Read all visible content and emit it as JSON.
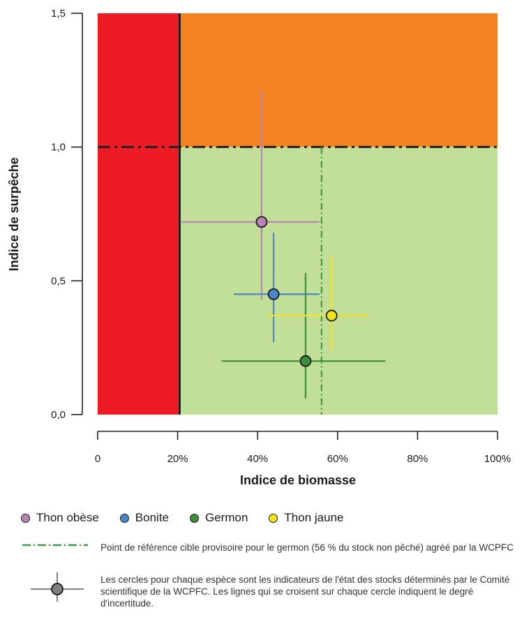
{
  "chart_data": {
    "type": "scatter",
    "xlabel": "Indice de biomasse",
    "ylabel": "Indice de surpêche",
    "xlim": [
      0,
      100
    ],
    "ylim": [
      0,
      1.5
    ],
    "x_ticks": [
      "0",
      "20%",
      "40%",
      "60%",
      "80%",
      "100%"
    ],
    "y_ticks": [
      "0,0",
      "0,5",
      "1,0",
      "1,5"
    ],
    "zones": [
      {
        "x": [
          0,
          20.5
        ],
        "y": [
          0,
          1.5
        ],
        "color": "#ed1c24"
      },
      {
        "x": [
          20.5,
          100
        ],
        "y": [
          1.0,
          1.5
        ],
        "color": "#f58220"
      },
      {
        "x": [
          20.5,
          100
        ],
        "y": [
          0,
          1.0
        ],
        "color": "#c2df9a"
      }
    ],
    "limit_reference_x": 20.5,
    "overfishing_reference_y": 1.0,
    "target_reference_x": 56,
    "series": [
      {
        "name": "Thon obèse",
        "color": "#b784b6",
        "x": 41,
        "y": 0.72,
        "x_range": [
          21,
          55.5
        ],
        "y_range": [
          0.43,
          1.21
        ]
      },
      {
        "name": "Bonite",
        "color": "#4a86c8",
        "x": 44,
        "y": 0.45,
        "x_range": [
          34,
          55.5
        ],
        "y_range": [
          0.27,
          0.68
        ]
      },
      {
        "name": "Germon",
        "color": "#3e8e3e",
        "x": 52,
        "y": 0.2,
        "x_range": [
          31,
          72
        ],
        "y_range": [
          0.06,
          0.53
        ]
      },
      {
        "name": "Thon jaune",
        "color": "#f2e51d",
        "x": 58.5,
        "y": 0.37,
        "x_range": [
          42.5,
          67.5
        ],
        "y_range": [
          0.24,
          0.59
        ]
      }
    ]
  },
  "legend": {
    "items": [
      {
        "label": "Thon obèse",
        "color": "#b784b6"
      },
      {
        "label": "Bonite",
        "color": "#4a86c8"
      },
      {
        "label": "Germon",
        "color": "#3e8e3e"
      },
      {
        "label": "Thon jaune",
        "color": "#f2e51d"
      }
    ]
  },
  "notes": {
    "target_line": "Point de référence cible provisoire pour le germon (56 % du stock non pêché) agréé par la WCPFC",
    "circles": "Les cercles pour chaque espèce sont les indicateurs de l'état des stocks déterminés par le Comité scientifique de la WCPFC. Les lignes qui se croisent sur chaque cercle indiquent le degré d'incertitude."
  },
  "colors": {
    "target_line": "#3e9a3e",
    "dashdot_line": "#222222",
    "legend_icon_fill": "#7f7f7f"
  }
}
